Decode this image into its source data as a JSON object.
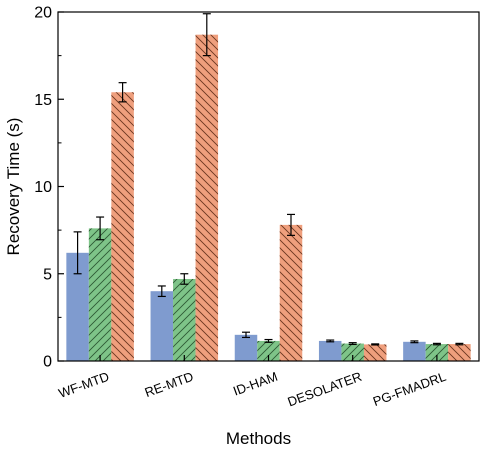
{
  "chart_data": {
    "type": "bar",
    "title": "",
    "xlabel": "Methods",
    "ylabel": "Recovery Time (s)",
    "ylim": [
      0,
      20
    ],
    "yticks": [
      0,
      5,
      10,
      15,
      20
    ],
    "yticks_labels": [
      "0",
      "5",
      "10",
      "15",
      "20"
    ],
    "grid": false,
    "legend": "none",
    "categories": [
      "WF-MTD",
      "RE-MTD",
      "ID-HAM",
      "DESOLATER",
      "PG-FMADRL"
    ],
    "series": [
      {
        "color": "#7f9bcf",
        "pattern": "solid",
        "values": [
          6.2,
          4.0,
          1.5,
          1.15,
          1.1
        ],
        "errors": [
          1.2,
          0.3,
          0.15,
          0.05,
          0.05
        ]
      },
      {
        "color": "#7ec488",
        "pattern": "hatch-forward",
        "values": [
          7.6,
          4.7,
          1.15,
          1.0,
          0.97
        ],
        "errors": [
          0.65,
          0.3,
          0.08,
          0.05,
          0.04
        ]
      },
      {
        "color": "#ef9f7d",
        "pattern": "hatch-back",
        "values": [
          15.4,
          18.7,
          7.8,
          0.95,
          0.97
        ],
        "errors": [
          0.55,
          1.2,
          0.6,
          0.03,
          0.04
        ]
      }
    ]
  }
}
